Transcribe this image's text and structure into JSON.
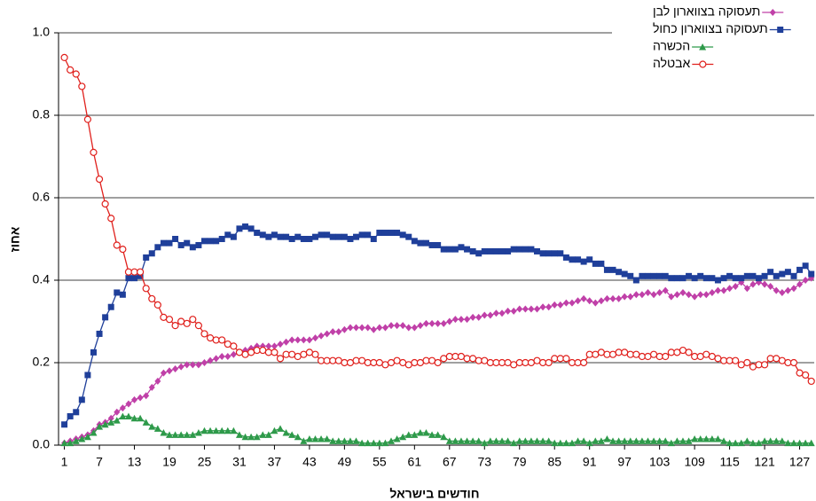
{
  "chart_data": {
    "type": "line",
    "x_label": "חודשים בישראל",
    "y_label": "אחוז",
    "x": [
      1,
      2,
      3,
      4,
      5,
      6,
      7,
      8,
      9,
      10,
      11,
      12,
      13,
      14,
      15,
      16,
      17,
      18,
      19,
      20,
      21,
      22,
      23,
      24,
      25,
      26,
      27,
      28,
      29,
      30,
      31,
      32,
      33,
      34,
      35,
      36,
      37,
      38,
      39,
      40,
      41,
      42,
      43,
      44,
      45,
      46,
      47,
      48,
      49,
      50,
      51,
      52,
      53,
      54,
      55,
      56,
      57,
      58,
      59,
      60,
      61,
      62,
      63,
      64,
      65,
      66,
      67,
      68,
      69,
      70,
      71,
      72,
      73,
      74,
      75,
      76,
      77,
      78,
      79,
      80,
      81,
      82,
      83,
      84,
      85,
      86,
      87,
      88,
      89,
      90,
      91,
      92,
      93,
      94,
      95,
      96,
      97,
      98,
      99,
      100,
      101,
      102,
      103,
      104,
      105,
      106,
      107,
      108,
      109,
      110,
      111,
      112,
      113,
      114,
      115,
      116,
      117,
      118,
      119,
      120,
      121,
      122,
      123,
      124,
      125,
      126,
      127,
      128,
      129
    ],
    "xlim": [
      0,
      129.5
    ],
    "xticks": [
      1,
      7,
      13,
      19,
      25,
      31,
      37,
      43,
      49,
      55,
      61,
      67,
      73,
      79,
      85,
      91,
      97,
      103,
      109,
      115,
      121,
      127
    ],
    "ylim": [
      0,
      1
    ],
    "yticks": [
      {
        "value": 0,
        "label": "0.0"
      },
      0.2,
      0.4,
      0.6,
      0.8,
      {
        "value": 1,
        "label": "1.0"
      }
    ],
    "grid": true,
    "legend": "top-right",
    "series": [
      {
        "name": "תעסוקה בצווארון לבן",
        "color": "#c040a8",
        "marker": "diamond",
        "values": [
          0.005,
          0.01,
          0.015,
          0.02,
          0.025,
          0.035,
          0.05,
          0.055,
          0.065,
          0.08,
          0.09,
          0.1,
          0.11,
          0.115,
          0.12,
          0.14,
          0.155,
          0.175,
          0.18,
          0.185,
          0.19,
          0.195,
          0.195,
          0.195,
          0.2,
          0.205,
          0.21,
          0.215,
          0.215,
          0.22,
          0.225,
          0.23,
          0.235,
          0.24,
          0.24,
          0.24,
          0.24,
          0.245,
          0.25,
          0.255,
          0.255,
          0.255,
          0.255,
          0.26,
          0.265,
          0.27,
          0.275,
          0.275,
          0.28,
          0.285,
          0.285,
          0.285,
          0.285,
          0.28,
          0.285,
          0.285,
          0.29,
          0.29,
          0.29,
          0.285,
          0.285,
          0.29,
          0.295,
          0.295,
          0.295,
          0.295,
          0.3,
          0.305,
          0.305,
          0.305,
          0.31,
          0.31,
          0.315,
          0.315,
          0.32,
          0.32,
          0.325,
          0.325,
          0.33,
          0.33,
          0.33,
          0.33,
          0.335,
          0.335,
          0.34,
          0.34,
          0.345,
          0.345,
          0.35,
          0.355,
          0.35,
          0.345,
          0.35,
          0.355,
          0.355,
          0.355,
          0.36,
          0.36,
          0.365,
          0.365,
          0.37,
          0.365,
          0.37,
          0.375,
          0.36,
          0.365,
          0.37,
          0.365,
          0.36,
          0.365,
          0.365,
          0.37,
          0.375,
          0.375,
          0.38,
          0.385,
          0.395,
          0.38,
          0.39,
          0.395,
          0.39,
          0.385,
          0.375,
          0.37,
          0.375,
          0.38,
          0.39,
          0.4,
          0.405
        ]
      },
      {
        "name": "תעסוקה בצווארון כחול",
        "color": "#1f3f9a",
        "marker": "square",
        "values": [
          0.05,
          0.07,
          0.08,
          0.11,
          0.17,
          0.225,
          0.27,
          0.31,
          0.335,
          0.37,
          0.365,
          0.405,
          0.405,
          0.41,
          0.455,
          0.465,
          0.48,
          0.49,
          0.49,
          0.5,
          0.485,
          0.49,
          0.48,
          0.485,
          0.495,
          0.495,
          0.495,
          0.5,
          0.51,
          0.505,
          0.525,
          0.53,
          0.525,
          0.515,
          0.51,
          0.505,
          0.51,
          0.505,
          0.505,
          0.5,
          0.505,
          0.5,
          0.5,
          0.505,
          0.51,
          0.51,
          0.505,
          0.505,
          0.505,
          0.5,
          0.505,
          0.51,
          0.51,
          0.5,
          0.515,
          0.515,
          0.515,
          0.515,
          0.51,
          0.505,
          0.495,
          0.49,
          0.49,
          0.485,
          0.485,
          0.475,
          0.475,
          0.475,
          0.48,
          0.475,
          0.47,
          0.465,
          0.47,
          0.47,
          0.47,
          0.47,
          0.47,
          0.475,
          0.475,
          0.475,
          0.475,
          0.47,
          0.465,
          0.465,
          0.465,
          0.465,
          0.455,
          0.45,
          0.45,
          0.445,
          0.45,
          0.44,
          0.44,
          0.425,
          0.425,
          0.42,
          0.415,
          0.41,
          0.4,
          0.41,
          0.41,
          0.41,
          0.41,
          0.41,
          0.405,
          0.405,
          0.405,
          0.41,
          0.405,
          0.41,
          0.405,
          0.405,
          0.4,
          0.405,
          0.41,
          0.405,
          0.405,
          0.41,
          0.41,
          0.405,
          0.41,
          0.42,
          0.41,
          0.415,
          0.42,
          0.41,
          0.425,
          0.435,
          0.415
        ]
      },
      {
        "name": "הכשרה",
        "color": "#2e9a4a",
        "marker": "triangle",
        "values": [
          0.005,
          0.005,
          0.01,
          0.015,
          0.02,
          0.03,
          0.045,
          0.05,
          0.055,
          0.06,
          0.07,
          0.07,
          0.065,
          0.065,
          0.055,
          0.045,
          0.04,
          0.03,
          0.025,
          0.025,
          0.025,
          0.025,
          0.025,
          0.03,
          0.035,
          0.035,
          0.035,
          0.035,
          0.035,
          0.035,
          0.025,
          0.02,
          0.02,
          0.02,
          0.025,
          0.025,
          0.035,
          0.04,
          0.03,
          0.025,
          0.02,
          0.01,
          0.015,
          0.015,
          0.015,
          0.015,
          0.01,
          0.01,
          0.01,
          0.01,
          0.01,
          0.005,
          0.005,
          0.005,
          0.005,
          0.005,
          0.01,
          0.015,
          0.02,
          0.025,
          0.025,
          0.03,
          0.03,
          0.025,
          0.025,
          0.02,
          0.01,
          0.01,
          0.01,
          0.01,
          0.01,
          0.01,
          0.005,
          0.01,
          0.01,
          0.01,
          0.01,
          0.005,
          0.01,
          0.01,
          0.01,
          0.01,
          0.01,
          0.01,
          0.005,
          0.005,
          0.005,
          0.005,
          0.01,
          0.01,
          0.005,
          0.01,
          0.01,
          0.015,
          0.01,
          0.01,
          0.01,
          0.01,
          0.01,
          0.01,
          0.01,
          0.01,
          0.01,
          0.01,
          0.005,
          0.01,
          0.01,
          0.01,
          0.015,
          0.015,
          0.015,
          0.015,
          0.015,
          0.01,
          0.005,
          0.005,
          0.005,
          0.01,
          0.005,
          0.005,
          0.01,
          0.01,
          0.01,
          0.01,
          0.005,
          0.005,
          0.005,
          0.005,
          0.005
        ]
      },
      {
        "name": "אבטלה",
        "color": "#e0201c",
        "marker": "circle",
        "values": [
          0.94,
          0.91,
          0.9,
          0.87,
          0.79,
          0.71,
          0.645,
          0.585,
          0.55,
          0.485,
          0.475,
          0.42,
          0.42,
          0.42,
          0.38,
          0.355,
          0.34,
          0.31,
          0.305,
          0.29,
          0.3,
          0.295,
          0.305,
          0.29,
          0.27,
          0.26,
          0.255,
          0.255,
          0.245,
          0.24,
          0.225,
          0.22,
          0.225,
          0.23,
          0.23,
          0.225,
          0.225,
          0.21,
          0.22,
          0.22,
          0.215,
          0.22,
          0.225,
          0.22,
          0.205,
          0.205,
          0.205,
          0.205,
          0.2,
          0.2,
          0.205,
          0.205,
          0.2,
          0.2,
          0.2,
          0.195,
          0.2,
          0.205,
          0.2,
          0.195,
          0.2,
          0.2,
          0.205,
          0.205,
          0.2,
          0.21,
          0.215,
          0.215,
          0.215,
          0.21,
          0.21,
          0.205,
          0.205,
          0.2,
          0.2,
          0.2,
          0.2,
          0.195,
          0.2,
          0.2,
          0.2,
          0.205,
          0.2,
          0.2,
          0.21,
          0.21,
          0.21,
          0.2,
          0.2,
          0.2,
          0.22,
          0.22,
          0.225,
          0.22,
          0.22,
          0.225,
          0.225,
          0.22,
          0.22,
          0.215,
          0.215,
          0.22,
          0.215,
          0.215,
          0.225,
          0.225,
          0.23,
          0.225,
          0.215,
          0.215,
          0.22,
          0.215,
          0.21,
          0.205,
          0.205,
          0.205,
          0.195,
          0.2,
          0.19,
          0.195,
          0.195,
          0.21,
          0.21,
          0.205,
          0.2,
          0.2,
          0.175,
          0.17,
          0.155
        ]
      }
    ]
  }
}
